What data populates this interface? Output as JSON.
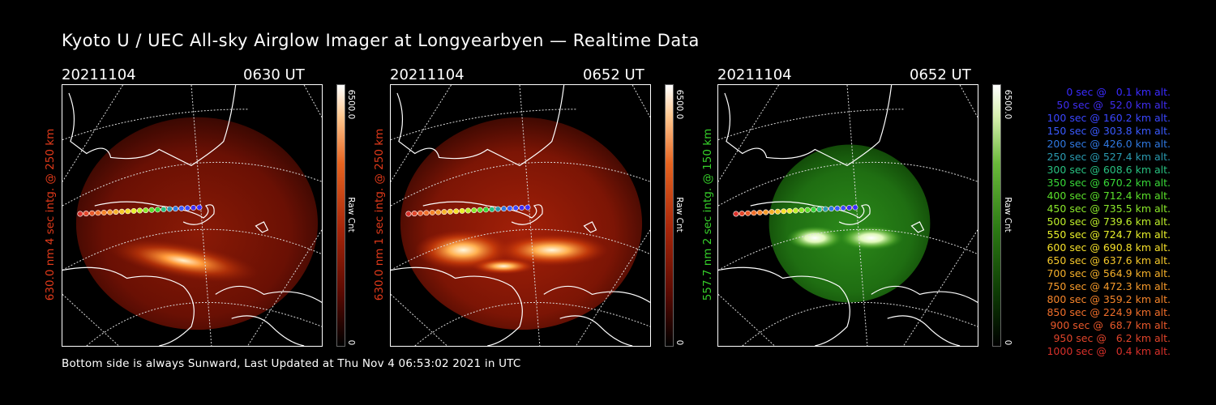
{
  "title": "Kyoto U / UEC All-sky Airglow Imager at Longyearbyen — Realtime Data",
  "footer": "Bottom side is always Sunward, Last Updated at Thu Nov  4 06:53:02 2021 in UTC",
  "panels": [
    {
      "date": "20211104",
      "time": "0630 UT",
      "side_label": "630.0 nm 4 sec intg. @ 250 km",
      "label_color": "#e23a1a",
      "colorbar_max": "6500.0",
      "colorbar_min": "0",
      "colorbar_unit": "Raw Cnt",
      "colormap": "red"
    },
    {
      "date": "20211104",
      "time": "0652 UT",
      "side_label": "630.0 nm 1 sec intg. @ 250 km",
      "label_color": "#e23a1a",
      "colorbar_max": "6500.0",
      "colorbar_min": "0",
      "colorbar_unit": "Raw Cnt",
      "colormap": "red"
    },
    {
      "date": "20211104",
      "time": "0652 UT",
      "side_label": "557.7 nm 2 sec intg. @ 150 km",
      "label_color": "#36d12a",
      "colorbar_max": "6500.0",
      "colorbar_min": "0",
      "colorbar_unit": "Raw Cnt",
      "colormap": "green"
    }
  ],
  "legend": [
    {
      "text": "0 sec @   0.1 km alt.",
      "color": "#3a2bff"
    },
    {
      "text": "50 sec @  52.0 km alt.",
      "color": "#3f2df0"
    },
    {
      "text": "100 sec @ 160.2 km alt.",
      "color": "#3a46ff"
    },
    {
      "text": "150 sec @ 303.8 km alt.",
      "color": "#3a5aff"
    },
    {
      "text": "200 sec @ 426.0 km alt.",
      "color": "#2f78e0"
    },
    {
      "text": "250 sec @ 527.4 km alt.",
      "color": "#2a9ab0"
    },
    {
      "text": "300 sec @ 608.6 km alt.",
      "color": "#28c080"
    },
    {
      "text": "350 sec @ 670.2 km alt.",
      "color": "#38d838"
    },
    {
      "text": "400 sec @ 712.4 km alt.",
      "color": "#5ae02a"
    },
    {
      "text": "450 sec @ 735.5 km alt.",
      "color": "#8ae82a"
    },
    {
      "text": "500 sec @ 739.6 km alt.",
      "color": "#bff02a"
    },
    {
      "text": "550 sec @ 724.7 km alt.",
      "color": "#e8f02a"
    },
    {
      "text": "600 sec @ 690.8 km alt.",
      "color": "#f5e02a"
    },
    {
      "text": "650 sec @ 637.6 km alt.",
      "color": "#f5c82a"
    },
    {
      "text": "700 sec @ 564.9 km alt.",
      "color": "#f5b02a"
    },
    {
      "text": "750 sec @ 472.3 km alt.",
      "color": "#f59a2a"
    },
    {
      "text": "800 sec @ 359.2 km alt.",
      "color": "#f5842a"
    },
    {
      "text": "850 sec @ 224.9 km alt.",
      "color": "#f06e2a"
    },
    {
      "text": "900 sec @  68.7 km alt.",
      "color": "#e8582a"
    },
    {
      "text": "950 sec @   6.2 km alt.",
      "color": "#e0442a"
    },
    {
      "text": "1000 sec @   0.4 km alt.",
      "color": "#d8302a"
    }
  ]
}
